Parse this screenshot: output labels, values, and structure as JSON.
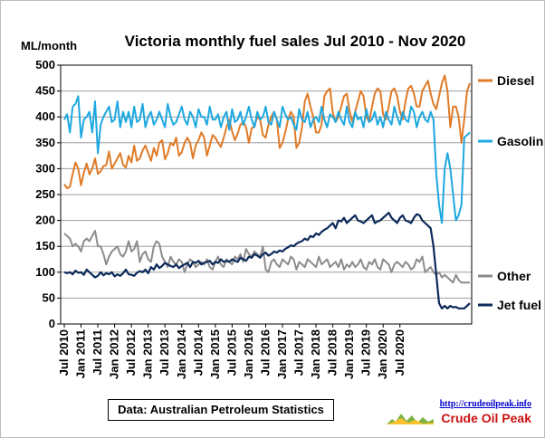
{
  "chart_data": {
    "type": "line",
    "title": "Victoria  monthly  fuel sales Jul 2010 - Nov 2020",
    "ylabel": "ML/month",
    "ylim": [
      0,
      500
    ],
    "y_ticks": [
      0,
      50,
      100,
      150,
      200,
      250,
      300,
      350,
      400,
      450,
      500
    ],
    "x_tick_labels": [
      "Jul 2010",
      "Jan 2011",
      "Jul 2011",
      "Jan 2012",
      "Jul 2012",
      "Jan 2013",
      "Jul 2013",
      "Jan 2014",
      "Jul 2014",
      "Jan 2015",
      "Jul 2015",
      "Jan 2016",
      "Jul 2016",
      "Jan 2017",
      "Jul 2017",
      "Jan 2018",
      "Jul 2018",
      "Jan 2019",
      "Jul 2019",
      "Jan 2020",
      "Jul 2020"
    ],
    "x_range": [
      "Jul 2010",
      "Nov 2020"
    ],
    "grid": "horizontal",
    "legend_placement": "right",
    "source_note": "Data: Australian Petroleum Statistics",
    "logo_url": "http://crudeoilpeak.info",
    "logo_name": "Crude Oil Peak",
    "series": [
      {
        "name": "Diesel",
        "color": "#e07b28",
        "values": [
          270,
          262,
          265,
          290,
          312,
          300,
          268,
          292,
          310,
          289,
          300,
          320,
          290,
          295,
          305,
          307,
          333,
          300,
          310,
          320,
          330,
          308,
          302,
          325,
          312,
          345,
          315,
          320,
          335,
          345,
          330,
          315,
          340,
          325,
          350,
          355,
          318,
          330,
          350,
          345,
          360,
          325,
          332,
          350,
          360,
          350,
          320,
          345,
          355,
          370,
          360,
          325,
          345,
          365,
          360,
          350,
          342,
          360,
          380,
          395,
          372,
          355,
          368,
          385,
          390,
          380,
          350,
          378,
          382,
          400,
          395,
          365,
          360,
          385,
          400,
          410,
          395,
          340,
          350,
          370,
          395,
          410,
          400,
          340,
          350,
          380,
          430,
          445,
          420,
          400,
          370,
          370,
          385,
          440,
          450,
          455,
          408,
          390,
          400,
          420,
          440,
          445,
          412,
          390,
          410,
          430,
          450,
          440,
          400,
          390,
          420,
          445,
          455,
          450,
          405,
          395,
          420,
          450,
          455,
          440,
          410,
          395,
          430,
          455,
          460,
          445,
          420,
          420,
          450,
          460,
          470,
          445,
          425,
          415,
          440,
          465,
          480,
          450,
          380,
          420,
          420,
          400,
          350,
          395,
          450,
          465
        ]
      },
      {
        "name": "Gasoline",
        "color": "#1ea8e0",
        "values": [
          395,
          405,
          370,
          420,
          425,
          440,
          360,
          395,
          400,
          410,
          370,
          430,
          330,
          385,
          400,
          410,
          420,
          390,
          395,
          430,
          380,
          410,
          390,
          410,
          380,
          420,
          390,
          395,
          425,
          380,
          400,
          410,
          385,
          395,
          410,
          395,
          380,
          425,
          400,
          385,
          390,
          405,
          420,
          395,
          385,
          410,
          400,
          380,
          415,
          400,
          400,
          385,
          420,
          395,
          395,
          405,
          380,
          400,
          410,
          375,
          415,
          390,
          395,
          410,
          385,
          400,
          420,
          395,
          380,
          410,
          395,
          400,
          420,
          390,
          385,
          410,
          395,
          380,
          420,
          405,
          395,
          400,
          385,
          375,
          415,
          395,
          390,
          410,
          380,
          395,
          400,
          390,
          420,
          395,
          380,
          405,
          400,
          390,
          410,
          395,
          385,
          420,
          390,
          380,
          410,
          395,
          400,
          380,
          415,
          390,
          395,
          410,
          385,
          400,
          380,
          410,
          395,
          385,
          420,
          400,
          385,
          410,
          395,
          390,
          420,
          410,
          380,
          400,
          410,
          395,
          390,
          410,
          395,
          290,
          230,
          195,
          300,
          330,
          300,
          250,
          200,
          210,
          230,
          360,
          365,
          370
        ]
      },
      {
        "name": "Other",
        "color": "#8c8c8c",
        "values": [
          175,
          170,
          165,
          150,
          155,
          150,
          140,
          160,
          165,
          160,
          170,
          180,
          150,
          150,
          135,
          115,
          130,
          140,
          145,
          150,
          135,
          130,
          140,
          160,
          140,
          145,
          160,
          120,
          135,
          140,
          125,
          120,
          150,
          160,
          155,
          130,
          120,
          110,
          130,
          120,
          115,
          125,
          120,
          100,
          115,
          125,
          120,
          110,
          115,
          120,
          115,
          125,
          110,
          105,
          120,
          130,
          115,
          110,
          125,
          120,
          115,
          130,
          125,
          135,
          120,
          145,
          135,
          130,
          140,
          135,
          130,
          150,
          105,
          100,
          120,
          125,
          115,
          110,
          125,
          120,
          115,
          130,
          125,
          105,
          120,
          115,
          110,
          125,
          120,
          115,
          110,
          130,
          115,
          120,
          125,
          110,
          115,
          120,
          110,
          125,
          105,
          115,
          110,
          120,
          110,
          115,
          125,
          110,
          105,
          120,
          115,
          125,
          110,
          105,
          125,
          120,
          115,
          100,
          115,
          120,
          115,
          110,
          120,
          115,
          105,
          110,
          125,
          120,
          130,
          100,
          105,
          110,
          100,
          95,
          100,
          90,
          95,
          90,
          85,
          80,
          95,
          85,
          80,
          80,
          80,
          80
        ]
      },
      {
        "name": "Jet fuel",
        "color": "#0d2a5a",
        "values": [
          100,
          98,
          100,
          96,
          103,
          99,
          100,
          95,
          105,
          100,
          95,
          90,
          93,
          100,
          94,
          98,
          96,
          100,
          92,
          96,
          93,
          98,
          105,
          96,
          95,
          93,
          99,
          102,
          100,
          105,
          98,
          110,
          105,
          115,
          108,
          112,
          118,
          115,
          112,
          110,
          115,
          108,
          112,
          115,
          118,
          110,
          120,
          118,
          122,
          115,
          118,
          120,
          122,
          115,
          120,
          118,
          125,
          120,
          122,
          120,
          125,
          122,
          120,
          128,
          125,
          122,
          130,
          128,
          135,
          132,
          128,
          135,
          138,
          132,
          135,
          140,
          138,
          142,
          140,
          145,
          148,
          152,
          150,
          155,
          158,
          160,
          165,
          162,
          170,
          168,
          175,
          172,
          178,
          182,
          185,
          190,
          195,
          185,
          200,
          198,
          205,
          195,
          200,
          205,
          210,
          200,
          198,
          195,
          200,
          205,
          210,
          195,
          198,
          200,
          205,
          210,
          215,
          205,
          200,
          195,
          205,
          210,
          200,
          198,
          195,
          205,
          212,
          210,
          200,
          195,
          190,
          185,
          150,
          95,
          40,
          30,
          35,
          30,
          35,
          32,
          33,
          30,
          30,
          30,
          35,
          40
        ]
      }
    ]
  }
}
